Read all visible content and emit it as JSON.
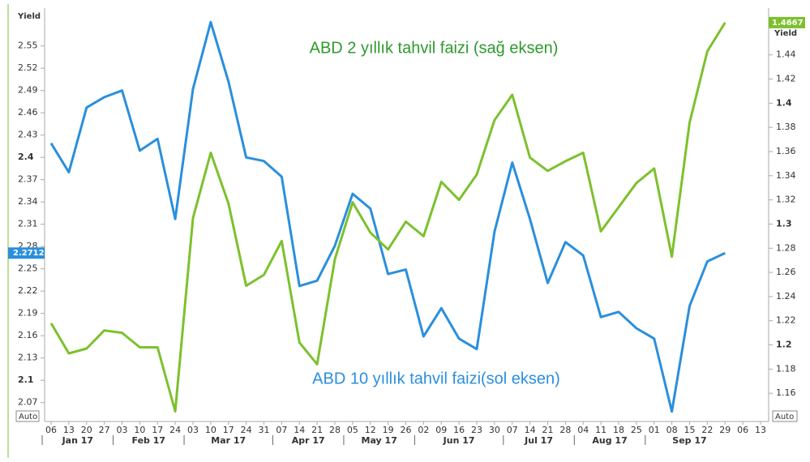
{
  "chart_data": {
    "type": "line",
    "annotations": [
      "ABD 2 yıllık tahvil faizi (sağ eksen)",
      "ABD 10 yıllık tahvil faizi(sol eksen)"
    ],
    "ylabel": "Yield",
    "y2label": "Yield",
    "auto_label": "Auto",
    "categories": [
      "06",
      "13",
      "20",
      "27",
      "03",
      "10",
      "17",
      "24",
      "03",
      "10",
      "17",
      "24",
      "31",
      "07",
      "14",
      "21",
      "28",
      "05",
      "12",
      "19",
      "26",
      "02",
      "09",
      "16",
      "23",
      "30",
      "07",
      "14",
      "21",
      "28",
      "04",
      "11",
      "18",
      "25",
      "01",
      "08",
      "15",
      "22",
      "29",
      "06",
      "13"
    ],
    "months": [
      "Jan 17",
      "Feb 17",
      "Mar 17",
      "Apr 17",
      "May 17",
      "Jun 17",
      "Jul 17",
      "Aug 17",
      "Sep 17"
    ],
    "series": [
      {
        "name": "ABD 10 yıllık tahvil faizi",
        "color": "#2a8fdc",
        "axis": "y",
        "values": [
          2.419,
          2.38,
          2.467,
          2.481,
          2.49,
          2.409,
          2.425,
          2.317,
          2.492,
          2.582,
          2.502,
          2.4,
          2.395,
          2.374,
          2.227,
          2.234,
          2.281,
          2.351,
          2.331,
          2.243,
          2.249,
          2.159,
          2.197,
          2.156,
          2.142,
          2.3,
          2.393,
          2.317,
          2.231,
          2.286,
          2.268,
          2.185,
          2.192,
          2.17,
          2.156,
          2.058,
          2.2,
          2.26,
          2.2712,
          null,
          null
        ]
      },
      {
        "name": "ABD 2 yıllık tahvil faizi",
        "color": "#7cc12d",
        "axis": "y2",
        "values": [
          1.218,
          1.193,
          1.197,
          1.212,
          1.21,
          1.198,
          1.198,
          1.145,
          1.305,
          1.359,
          1.317,
          1.249,
          1.258,
          1.286,
          1.202,
          1.184,
          1.271,
          1.318,
          1.293,
          1.279,
          1.302,
          1.29,
          1.335,
          1.32,
          1.341,
          1.386,
          1.407,
          1.355,
          1.344,
          1.352,
          1.359,
          1.294,
          1.314,
          1.334,
          1.346,
          1.273,
          1.384,
          1.443,
          1.4667,
          null,
          null
        ]
      }
    ],
    "ylim": [
      2.05,
      2.59
    ],
    "yticks": [
      2.07,
      2.1,
      2.13,
      2.16,
      2.19,
      2.22,
      2.25,
      2.28,
      2.31,
      2.34,
      2.37,
      2.4,
      2.43,
      2.46,
      2.49,
      2.52,
      2.55
    ],
    "y2lim": [
      1.14,
      1.472
    ],
    "y2ticks": [
      1.16,
      1.18,
      1.2,
      1.22,
      1.24,
      1.26,
      1.28,
      1.3,
      1.32,
      1.34,
      1.36,
      1.38,
      1.4,
      1.42,
      1.44
    ]
  }
}
